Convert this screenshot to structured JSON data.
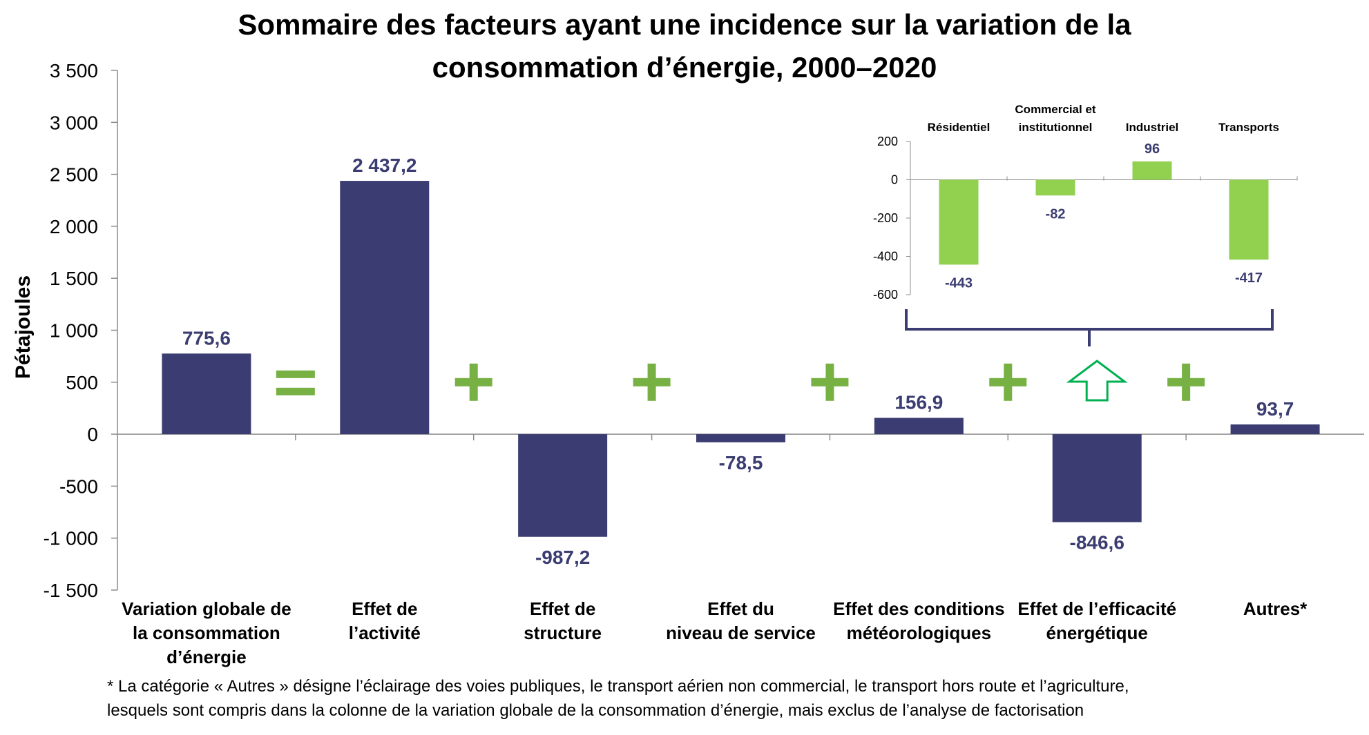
{
  "title_lines": [
    "Sommaire des facteurs ayant une incidence sur la variation de la",
    "consommation d’énergie, 2000–2020"
  ],
  "footnote_lines": [
    "* La catégorie « Autres » désigne l’éclairage des voies publiques, le transport aérien non commercial, le transport hors route et l’agriculture,",
    "lesquels sont compris dans la colonne de la variation globale de la consommation d’énergie, mais exclus de l’analyse de factorisation"
  ],
  "colors": {
    "bar": "#3b3d72",
    "inset_bar": "#92d050",
    "operator": "#77b143",
    "arrow": "#00b050",
    "label": "#3b3d72"
  },
  "chart_data": [
    {
      "type": "bar",
      "title": "Sommaire des facteurs ayant une incidence sur la variation de la consommation d’énergie, 2000–2020",
      "ylabel": "Pétajoules",
      "xlabel": "",
      "ylim": [
        -1500,
        3500
      ],
      "yticks": [
        3500,
        3000,
        2500,
        2000,
        1500,
        1000,
        500,
        0,
        -500,
        -1000,
        -1500
      ],
      "ytick_labels": [
        "3 500",
        "3 000",
        "2 500",
        "2 000",
        "1 500",
        "1 000",
        "500",
        "0",
        "-500",
        "-1 000",
        "-1 500"
      ],
      "categories": [
        [
          "Variation globale de",
          "la consommation",
          "d’énergie"
        ],
        [
          "Effet de",
          "l’activité"
        ],
        [
          "Effet de",
          "structure"
        ],
        [
          "Effet du",
          "niveau de service"
        ],
        [
          "Effet des conditions",
          "météorologiques"
        ],
        [
          "Effet de l’efficacité",
          "énergétique"
        ],
        [
          "Autres*"
        ]
      ],
      "values": [
        775.6,
        2437.2,
        -987.2,
        -78.5,
        156.9,
        -846.6,
        93.7
      ],
      "value_labels": [
        "775,6",
        "2 437,2",
        "-987,2",
        "-78,5",
        "156,9",
        "-846,6",
        "93,7"
      ],
      "operators": [
        "=",
        "+",
        "+",
        "+",
        "+",
        "+"
      ],
      "grid": false
    },
    {
      "type": "bar",
      "categories": [
        [
          "Résidentiel"
        ],
        [
          "Commercial et",
          "institutionnel"
        ],
        [
          "Industriel"
        ],
        [
          "Transports"
        ]
      ],
      "values": [
        -443,
        -82,
        96,
        -417
      ],
      "value_labels": [
        "-443",
        "-82",
        "96",
        "-417"
      ],
      "ylim": [
        -600,
        200
      ],
      "yticks": [
        200,
        0,
        -200,
        -400,
        -600
      ],
      "ytick_labels": [
        "200",
        "0",
        "-200",
        "-400",
        "-600"
      ],
      "grid": false
    }
  ]
}
